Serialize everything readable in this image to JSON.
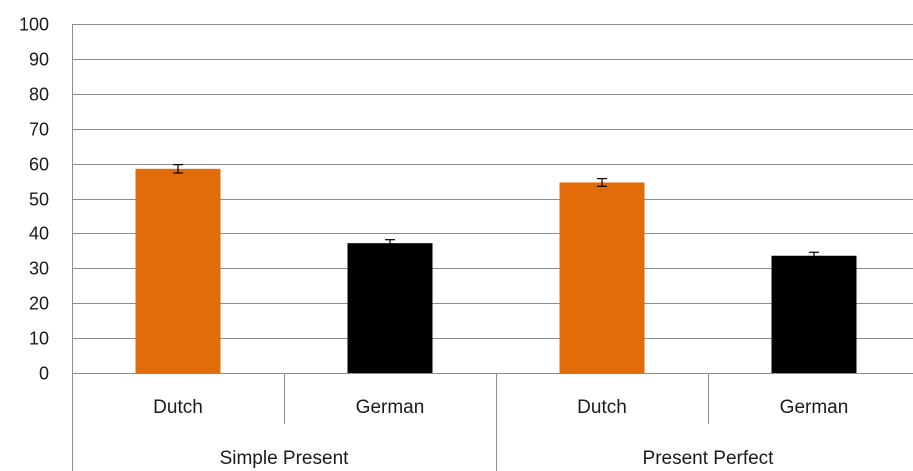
{
  "chart_data": {
    "type": "bar",
    "title": "",
    "xlabel": "",
    "ylabel": "",
    "ylim": [
      0,
      100
    ],
    "yticks": [
      0,
      10,
      20,
      30,
      40,
      50,
      60,
      70,
      80,
      90,
      100
    ],
    "grid": true,
    "legend": "none",
    "groups": [
      {
        "label": "Simple Present",
        "bars": [
          {
            "label": "Dutch",
            "value": 58.5,
            "error": 1.2,
            "color": "#E36C0A"
          },
          {
            "label": "German",
            "value": 37.2,
            "error": 1.0,
            "color": "#000000"
          }
        ]
      },
      {
        "label": "Present Perfect",
        "bars": [
          {
            "label": "Dutch",
            "value": 54.6,
            "error": 1.1,
            "color": "#E36C0A"
          },
          {
            "label": "German",
            "value": 33.6,
            "error": 1.0,
            "color": "#000000"
          }
        ]
      }
    ],
    "colors": {
      "grid": "#8c8c8c",
      "axis": "#8c8c8c",
      "error_bar": "#000000"
    }
  }
}
